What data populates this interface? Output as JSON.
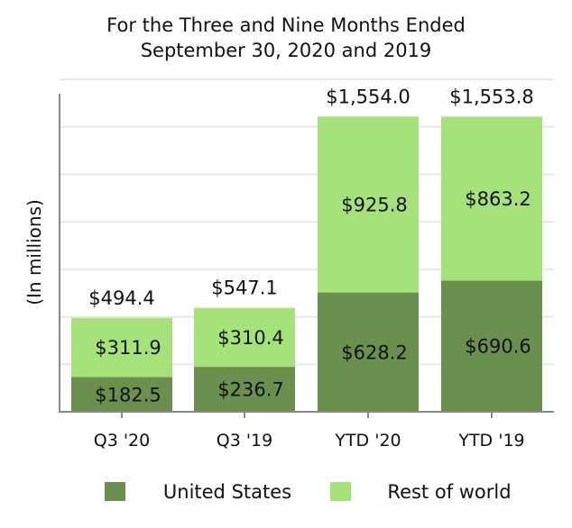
{
  "chart_data": {
    "type": "bar",
    "stacked": true,
    "title_lines": [
      "For the Three and Nine Months Ended",
      "September 30, 2020 and 2019"
    ],
    "xlabel": "",
    "ylabel": "(In millions)",
    "categories": [
      "Q3 '20",
      "Q3 '19",
      "YTD '20",
      "YTD '19"
    ],
    "series": [
      {
        "name": "United States",
        "color": "#6a8f4e",
        "values": [
          182.5,
          236.7,
          628.2,
          690.6
        ],
        "labels": [
          "$182.5",
          "$236.7",
          "$628.2",
          "$690.6"
        ]
      },
      {
        "name": "Rest of world",
        "color": "#a6e27a",
        "values": [
          311.9,
          310.4,
          925.8,
          863.2
        ],
        "labels": [
          "$311.9",
          "$310.4",
          "$925.8",
          "$863.2"
        ]
      }
    ],
    "totals": [
      "$494.4",
      "$547.1",
      "$1,554.0",
      "$1,553.8"
    ],
    "ylim": [
      0,
      1800
    ],
    "grid_step": 250,
    "grid": true,
    "legend_position": "bottom"
  }
}
